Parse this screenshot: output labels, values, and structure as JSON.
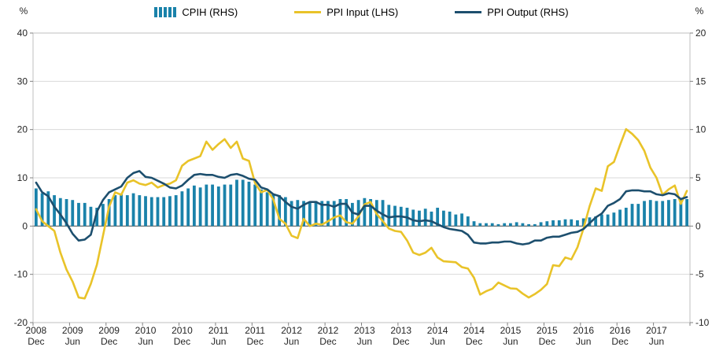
{
  "chart_data": {
    "type": "combo",
    "title": "",
    "legend_position": "top",
    "grid": true,
    "left_axis": {
      "label": "%",
      "min": -20,
      "max": 40,
      "ticks": [
        40,
        30,
        20,
        10,
        0,
        -10,
        -20
      ]
    },
    "right_axis": {
      "label": "%",
      "min": -10,
      "max": 20,
      "ticks": [
        20,
        15,
        10,
        5,
        0,
        -5,
        -10
      ]
    },
    "x_tick_every": 6,
    "x_tick_labels": [
      {
        "year": "2008",
        "month": "Dec"
      },
      {
        "year": "2009",
        "month": "Jun"
      },
      {
        "year": "2009",
        "month": "Dec"
      },
      {
        "year": "2010",
        "month": "Jun"
      },
      {
        "year": "2010",
        "month": "Dec"
      },
      {
        "year": "2011",
        "month": "Jun"
      },
      {
        "year": "2011",
        "month": "Dec"
      },
      {
        "year": "2012",
        "month": "Jun"
      },
      {
        "year": "2012",
        "month": "Dec"
      },
      {
        "year": "2013",
        "month": "Jun"
      },
      {
        "year": "2013",
        "month": "Dec"
      },
      {
        "year": "2014",
        "month": "Jun"
      },
      {
        "year": "2014",
        "month": "Dec"
      },
      {
        "year": "2015",
        "month": "Jun"
      },
      {
        "year": "2015",
        "month": "Dec"
      },
      {
        "year": "2016",
        "month": "Jun"
      },
      {
        "year": "2016",
        "month": "Dec"
      },
      {
        "year": "2017",
        "month": "Jun"
      }
    ],
    "series": [
      {
        "name": "CPIH (RHS)",
        "type": "bar",
        "axis": "right",
        "color": "#1a82aa",
        "values": [
          3.9,
          3.4,
          3.6,
          3.2,
          2.9,
          2.8,
          2.7,
          2.4,
          2.4,
          2.0,
          1.9,
          2.3,
          2.8,
          3.2,
          3.3,
          3.2,
          3.4,
          3.2,
          3.1,
          3.0,
          3.0,
          3.0,
          3.1,
          3.2,
          3.6,
          3.9,
          4.2,
          4.0,
          4.3,
          4.3,
          4.1,
          4.3,
          4.3,
          4.8,
          4.8,
          4.6,
          4.3,
          3.8,
          3.5,
          3.3,
          3.2,
          3.0,
          2.6,
          2.7,
          2.6,
          2.4,
          2.6,
          2.6,
          2.6,
          2.6,
          2.8,
          2.8,
          2.4,
          2.7,
          2.9,
          2.8,
          2.7,
          2.7,
          2.2,
          2.1,
          2.0,
          1.9,
          1.7,
          1.6,
          1.8,
          1.5,
          1.9,
          1.6,
          1.5,
          1.2,
          1.3,
          1.0,
          0.5,
          0.3,
          0.3,
          0.3,
          0.2,
          0.3,
          0.3,
          0.4,
          0.3,
          0.2,
          0.2,
          0.4,
          0.5,
          0.6,
          0.6,
          0.7,
          0.7,
          0.6,
          0.8,
          0.9,
          1.0,
          1.2,
          1.2,
          1.4,
          1.7,
          1.9,
          2.3,
          2.3,
          2.6,
          2.7,
          2.6,
          2.6,
          2.7,
          2.8,
          2.8,
          2.8
        ]
      },
      {
        "name": "PPI Input (LHS)",
        "type": "line",
        "axis": "left",
        "color": "#e9c329",
        "values": [
          3.5,
          1.0,
          0.0,
          -1.0,
          -5.5,
          -9.0,
          -11.5,
          -14.8,
          -15.0,
          -12.0,
          -8.0,
          -2.0,
          4.0,
          7.0,
          6.5,
          9.0,
          9.5,
          8.8,
          8.5,
          9.0,
          8.0,
          8.5,
          8.8,
          9.5,
          12.5,
          13.5,
          14.0,
          14.5,
          17.5,
          15.8,
          17.0,
          18.0,
          16.2,
          17.5,
          14.0,
          13.5,
          8.9,
          7.0,
          7.5,
          5.5,
          1.5,
          0.5,
          -2.0,
          -2.5,
          1.5,
          0.0,
          0.5,
          0.3,
          1.0,
          1.8,
          2.2,
          0.8,
          0.5,
          2.0,
          4.5,
          5.0,
          2.5,
          1.0,
          -0.5,
          -1.0,
          -1.2,
          -3.0,
          -5.5,
          -6.0,
          -5.5,
          -4.5,
          -6.5,
          -7.3,
          -7.4,
          -7.5,
          -8.5,
          -8.8,
          -10.7,
          -14.2,
          -13.5,
          -13.0,
          -11.7,
          -12.3,
          -12.9,
          -13.0,
          -14.0,
          -14.8,
          -14.1,
          -13.2,
          -12.0,
          -8.1,
          -8.3,
          -6.5,
          -6.9,
          -4.4,
          -0.5,
          4.1,
          7.8,
          7.3,
          12.4,
          13.3,
          16.8,
          20.1,
          19.1,
          17.8,
          15.6,
          12.1,
          10.0,
          6.5,
          7.6,
          8.4,
          4.6,
          7.3
        ]
      },
      {
        "name": "PPI Output (RHS)",
        "type": "line",
        "axis": "right",
        "color": "#1d4f6e",
        "values": [
          4.5,
          3.5,
          3.1,
          2.0,
          1.2,
          0.3,
          -0.8,
          -1.5,
          -1.4,
          -0.9,
          1.5,
          2.7,
          3.5,
          3.8,
          4.1,
          5.0,
          5.5,
          5.7,
          5.1,
          5.0,
          4.7,
          4.4,
          4.0,
          3.9,
          4.2,
          4.8,
          5.3,
          5.4,
          5.3,
          5.3,
          5.1,
          5.0,
          5.3,
          5.4,
          5.2,
          4.9,
          4.8,
          4.0,
          3.8,
          3.3,
          3.1,
          2.5,
          2.0,
          1.8,
          2.2,
          2.5,
          2.5,
          2.2,
          2.2,
          2.0,
          2.3,
          2.3,
          1.4,
          1.2,
          2.1,
          2.1,
          1.6,
          1.2,
          0.9,
          1.0,
          1.0,
          0.9,
          0.6,
          0.5,
          0.6,
          0.5,
          0.2,
          -0.1,
          -0.3,
          -0.4,
          -0.5,
          -0.9,
          -1.7,
          -1.8,
          -1.8,
          -1.7,
          -1.7,
          -1.6,
          -1.6,
          -1.8,
          -1.9,
          -1.8,
          -1.5,
          -1.5,
          -1.2,
          -1.1,
          -1.1,
          -0.9,
          -0.7,
          -0.6,
          -0.3,
          0.3,
          0.9,
          1.3,
          2.1,
          2.4,
          2.8,
          3.6,
          3.7,
          3.7,
          3.6,
          3.6,
          3.3,
          3.2,
          3.4,
          3.3,
          2.8,
          3.0
        ]
      }
    ],
    "colors": {
      "grid": "#d9d9d9",
      "zero_line": "#595959",
      "border": "#bfbfbf",
      "tick": "#808080",
      "text": "#262626"
    }
  }
}
